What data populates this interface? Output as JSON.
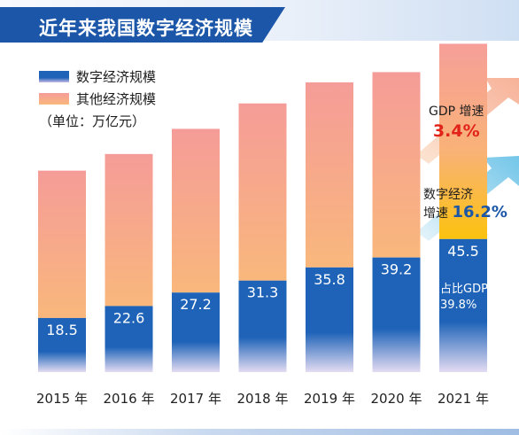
{
  "title": "近年来我国数字经济规模",
  "legend": {
    "digital": "数字经济规模",
    "other": "其他经济规模",
    "unit": "（单位：万亿元）"
  },
  "annotations": {
    "gdp_growth_label": "GDP 增速",
    "gdp_growth_value": "3.4%",
    "digital_growth_label_1": "数字经济",
    "digital_growth_label_2": "增速",
    "digital_growth_value": "16.2%",
    "share_label": "占比GDP",
    "share_value": "39.8%"
  },
  "colors": {
    "digital": "#1e63b8",
    "other_top": "#f59c98",
    "other_bottom": "#f9b77c",
    "highlight_other": "#fcc20e",
    "title_bg": "#1b56a8",
    "gdp_value": "#e2231a",
    "digital_value": "#1b56a8"
  },
  "chart_data": {
    "type": "bar",
    "stacked": true,
    "categories": [
      "2015年",
      "2016年",
      "2017年",
      "2018年",
      "2019年",
      "2020年",
      "2021年"
    ],
    "series": [
      {
        "name": "数字经济规模",
        "values": [
          18.5,
          22.6,
          27.2,
          31.3,
          35.8,
          39.2,
          45.5
        ]
      },
      {
        "name": "其他经济规模",
        "values": [
          50.4,
          52.0,
          56.0,
          60.6,
          63.3,
          63.4,
          66.8
        ]
      }
    ],
    "digital_labels": [
      "18.5",
      "22.6",
      "27.2",
      "31.3",
      "35.8",
      "39.2",
      "45.5"
    ],
    "year_labels": [
      "2015 年",
      "2016 年",
      "2017 年",
      "2018 年",
      "2019 年",
      "2020 年",
      "2021 年"
    ],
    "grid": false,
    "legend_position": "top-left",
    "ylim": [
      0,
      120
    ]
  }
}
